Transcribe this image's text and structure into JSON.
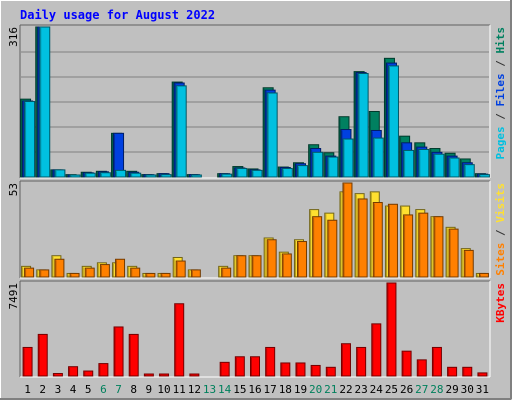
{
  "chart_data": {
    "type": "bar",
    "title": "Daily usage for August 2022",
    "categories": [
      "1",
      "2",
      "3",
      "4",
      "5",
      "6",
      "7",
      "8",
      "9",
      "10",
      "11",
      "12",
      "13",
      "14",
      "15",
      "16",
      "17",
      "18",
      "19",
      "20",
      "21",
      "22",
      "23",
      "24",
      "25",
      "26",
      "27",
      "28",
      "29",
      "30",
      "31"
    ],
    "weekend_days": [
      "6",
      "7",
      "13",
      "14",
      "20",
      "21",
      "27",
      "28"
    ],
    "panels": [
      {
        "id": "hits-files-pages",
        "max_label": "316",
        "ymax": 316,
        "legend": [
          {
            "text": "Pages",
            "color": "#00C0E0"
          },
          {
            "text": " / ",
            "color": "#333333"
          },
          {
            "text": "Files",
            "color": "#0040E0"
          },
          {
            "text": " / ",
            "color": "#333333"
          },
          {
            "text": "Hits",
            "color": "#008060"
          }
        ],
        "series": [
          {
            "name": "Hits",
            "color": "#008060",
            "values": [
              164,
              316,
              15,
              5,
              10,
              12,
              92,
              12,
              5,
              7,
              200,
              5,
              0,
              7,
              22,
              17,
              188,
              21,
              30,
              68,
              51,
              127,
              222,
              138,
              250,
              86,
              72,
              60,
              50,
              38,
              7
            ]
          },
          {
            "name": "Files",
            "color": "#0040E0",
            "values": [
              160,
              316,
              15,
              4,
              9,
              11,
              92,
              10,
              5,
              7,
              198,
              5,
              0,
              7,
              19,
              15,
              183,
              20,
              28,
              60,
              44,
              100,
              220,
              98,
              240,
              72,
              63,
              52,
              44,
              30,
              6
            ]
          },
          {
            "name": "Pages",
            "color": "#00C0E0",
            "values": [
              159,
              316,
              15,
              4,
              8,
              9,
              14,
              8,
              3,
              5,
              192,
              4,
              0,
              6,
              18,
              14,
              177,
              18,
              24,
              52,
              42,
              80,
              218,
              82,
              234,
              56,
              58,
              48,
              40,
              26,
              5
            ]
          }
        ]
      },
      {
        "id": "sites-visits",
        "max_label": "53",
        "ymax": 53,
        "legend": [
          {
            "text": "Sites",
            "color": "#FF8000"
          },
          {
            "text": " / ",
            "color": "#333333"
          },
          {
            "text": "Visits",
            "color": "#FFE030"
          }
        ],
        "series": [
          {
            "name": "Visits",
            "color": "#FFE030",
            "values": [
              6,
              4,
              12,
              2,
              6,
              8,
              8,
              6,
              2,
              2,
              11,
              4,
              0,
              6,
              12,
              12,
              22,
              14,
              21,
              38,
              36,
              48,
              47,
              48,
              40,
              40,
              38,
              34,
              28,
              16,
              2
            ]
          },
          {
            "name": "Sites",
            "color": "#FF8000",
            "values": [
              5,
              4,
              10,
              2,
              5,
              7,
              10,
              5,
              2,
              2,
              9,
              4,
              0,
              5,
              12,
              12,
              21,
              13,
              20,
              34,
              32,
              53,
              44,
              42,
              41,
              35,
              36,
              34,
              27,
              15,
              2
            ]
          }
        ]
      },
      {
        "id": "kbytes",
        "max_label": "7491",
        "ymax": 7491,
        "legend": [
          {
            "text": "KBytes",
            "color": "#FF0000"
          }
        ],
        "series": [
          {
            "name": "KBytes",
            "color": "#FF0000",
            "values": [
              2300,
              3350,
              200,
              750,
              400,
              1000,
              3950,
              3350,
              120,
              120,
              5820,
              150,
              0,
              1100,
              1550,
              1550,
              2300,
              1050,
              1050,
              850,
              700,
              2600,
              2300,
              4200,
              7491,
              2000,
              1300,
              2300,
              700,
              700,
              250
            ]
          }
        ]
      }
    ]
  }
}
